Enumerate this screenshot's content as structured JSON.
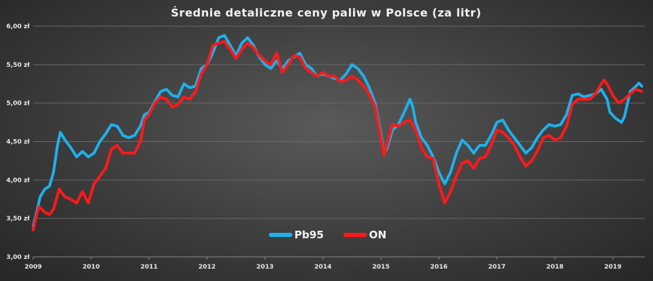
{
  "chart_data": {
    "type": "line",
    "title": "Średnie detaliczne ceny paliw w Polsce (za litr)",
    "ylim": [
      3.0,
      6.0
    ],
    "xlim": [
      2009.0,
      2019.55
    ],
    "y_ticks": [
      3.0,
      3.5,
      4.0,
      4.5,
      5.0,
      5.5,
      6.0
    ],
    "y_tick_labels": [
      "3,00 zł",
      "3,50 zł",
      "4,00 zł",
      "4,50 zł",
      "5,00 zł",
      "5,50 zł",
      "6,00 zł"
    ],
    "x_ticks": [
      2009,
      2010,
      2011,
      2012,
      2013,
      2014,
      2015,
      2016,
      2017,
      2018,
      2019
    ],
    "x_tick_labels": [
      "2009",
      "2010",
      "2011",
      "2012",
      "2013",
      "2014",
      "2015",
      "2016",
      "2017",
      "2018",
      "2019"
    ],
    "grid": true,
    "legend": "bottom-center",
    "colors": {
      "Pb95": "#1fb0ec",
      "ON": "#ff1a1a"
    },
    "series": [
      {
        "name": "Pb95",
        "points": [
          [
            2009.0,
            3.4
          ],
          [
            2009.05,
            3.55
          ],
          [
            2009.12,
            3.78
          ],
          [
            2009.2,
            3.88
          ],
          [
            2009.28,
            3.92
          ],
          [
            2009.35,
            4.1
          ],
          [
            2009.42,
            4.45
          ],
          [
            2009.47,
            4.62
          ],
          [
            2009.55,
            4.52
          ],
          [
            2009.65,
            4.42
          ],
          [
            2009.75,
            4.3
          ],
          [
            2009.85,
            4.37
          ],
          [
            2009.95,
            4.3
          ],
          [
            2010.05,
            4.35
          ],
          [
            2010.15,
            4.5
          ],
          [
            2010.25,
            4.6
          ],
          [
            2010.35,
            4.72
          ],
          [
            2010.45,
            4.7
          ],
          [
            2010.55,
            4.58
          ],
          [
            2010.65,
            4.55
          ],
          [
            2010.75,
            4.58
          ],
          [
            2010.85,
            4.7
          ],
          [
            2010.92,
            4.85
          ],
          [
            2011.0,
            4.88
          ],
          [
            2011.1,
            5.02
          ],
          [
            2011.2,
            5.15
          ],
          [
            2011.3,
            5.18
          ],
          [
            2011.4,
            5.1
          ],
          [
            2011.5,
            5.08
          ],
          [
            2011.6,
            5.25
          ],
          [
            2011.7,
            5.2
          ],
          [
            2011.8,
            5.22
          ],
          [
            2011.9,
            5.45
          ],
          [
            2012.0,
            5.5
          ],
          [
            2012.1,
            5.65
          ],
          [
            2012.2,
            5.85
          ],
          [
            2012.3,
            5.88
          ],
          [
            2012.4,
            5.75
          ],
          [
            2012.5,
            5.62
          ],
          [
            2012.6,
            5.78
          ],
          [
            2012.7,
            5.85
          ],
          [
            2012.8,
            5.75
          ],
          [
            2012.9,
            5.6
          ],
          [
            2013.0,
            5.5
          ],
          [
            2013.1,
            5.45
          ],
          [
            2013.2,
            5.55
          ],
          [
            2013.3,
            5.45
          ],
          [
            2013.4,
            5.55
          ],
          [
            2013.5,
            5.6
          ],
          [
            2013.6,
            5.65
          ],
          [
            2013.7,
            5.5
          ],
          [
            2013.8,
            5.45
          ],
          [
            2013.9,
            5.35
          ],
          [
            2014.0,
            5.38
          ],
          [
            2014.1,
            5.35
          ],
          [
            2014.2,
            5.32
          ],
          [
            2014.3,
            5.3
          ],
          [
            2014.4,
            5.38
          ],
          [
            2014.5,
            5.5
          ],
          [
            2014.6,
            5.45
          ],
          [
            2014.7,
            5.35
          ],
          [
            2014.8,
            5.2
          ],
          [
            2014.9,
            5.0
          ],
          [
            2015.0,
            4.6
          ],
          [
            2015.05,
            4.35
          ],
          [
            2015.1,
            4.4
          ],
          [
            2015.2,
            4.65
          ],
          [
            2015.3,
            4.72
          ],
          [
            2015.4,
            4.88
          ],
          [
            2015.5,
            5.05
          ],
          [
            2015.55,
            4.95
          ],
          [
            2015.6,
            4.75
          ],
          [
            2015.7,
            4.55
          ],
          [
            2015.8,
            4.45
          ],
          [
            2015.9,
            4.3
          ],
          [
            2016.0,
            4.1
          ],
          [
            2016.1,
            3.95
          ],
          [
            2016.2,
            4.1
          ],
          [
            2016.3,
            4.35
          ],
          [
            2016.4,
            4.52
          ],
          [
            2016.5,
            4.45
          ],
          [
            2016.6,
            4.35
          ],
          [
            2016.7,
            4.45
          ],
          [
            2016.8,
            4.45
          ],
          [
            2016.9,
            4.58
          ],
          [
            2017.0,
            4.75
          ],
          [
            2017.1,
            4.78
          ],
          [
            2017.2,
            4.65
          ],
          [
            2017.3,
            4.55
          ],
          [
            2017.4,
            4.45
          ],
          [
            2017.5,
            4.35
          ],
          [
            2017.6,
            4.42
          ],
          [
            2017.7,
            4.55
          ],
          [
            2017.8,
            4.65
          ],
          [
            2017.9,
            4.72
          ],
          [
            2018.0,
            4.7
          ],
          [
            2018.1,
            4.72
          ],
          [
            2018.2,
            4.85
          ],
          [
            2018.3,
            5.1
          ],
          [
            2018.4,
            5.12
          ],
          [
            2018.5,
            5.08
          ],
          [
            2018.6,
            5.1
          ],
          [
            2018.7,
            5.12
          ],
          [
            2018.8,
            5.18
          ],
          [
            2018.9,
            5.05
          ],
          [
            2018.95,
            4.88
          ],
          [
            2019.05,
            4.8
          ],
          [
            2019.15,
            4.75
          ],
          [
            2019.2,
            4.82
          ],
          [
            2019.3,
            5.15
          ],
          [
            2019.4,
            5.22
          ],
          [
            2019.45,
            5.26
          ],
          [
            2019.5,
            5.22
          ]
        ]
      },
      {
        "name": "ON",
        "points": [
          [
            2009.0,
            3.35
          ],
          [
            2009.05,
            3.52
          ],
          [
            2009.1,
            3.65
          ],
          [
            2009.2,
            3.58
          ],
          [
            2009.28,
            3.55
          ],
          [
            2009.35,
            3.62
          ],
          [
            2009.45,
            3.88
          ],
          [
            2009.55,
            3.78
          ],
          [
            2009.65,
            3.75
          ],
          [
            2009.75,
            3.7
          ],
          [
            2009.85,
            3.85
          ],
          [
            2009.95,
            3.7
          ],
          [
            2010.05,
            3.95
          ],
          [
            2010.15,
            4.05
          ],
          [
            2010.25,
            4.15
          ],
          [
            2010.35,
            4.4
          ],
          [
            2010.45,
            4.45
          ],
          [
            2010.55,
            4.35
          ],
          [
            2010.65,
            4.35
          ],
          [
            2010.75,
            4.35
          ],
          [
            2010.85,
            4.5
          ],
          [
            2010.92,
            4.78
          ],
          [
            2011.0,
            4.85
          ],
          [
            2011.1,
            5.0
          ],
          [
            2011.2,
            5.08
          ],
          [
            2011.3,
            5.05
          ],
          [
            2011.4,
            4.95
          ],
          [
            2011.5,
            4.98
          ],
          [
            2011.6,
            5.08
          ],
          [
            2011.7,
            5.05
          ],
          [
            2011.8,
            5.15
          ],
          [
            2011.9,
            5.38
          ],
          [
            2012.0,
            5.5
          ],
          [
            2012.1,
            5.75
          ],
          [
            2012.2,
            5.78
          ],
          [
            2012.3,
            5.8
          ],
          [
            2012.4,
            5.7
          ],
          [
            2012.5,
            5.58
          ],
          [
            2012.6,
            5.7
          ],
          [
            2012.7,
            5.78
          ],
          [
            2012.8,
            5.72
          ],
          [
            2012.9,
            5.62
          ],
          [
            2013.0,
            5.55
          ],
          [
            2013.1,
            5.5
          ],
          [
            2013.2,
            5.65
          ],
          [
            2013.3,
            5.4
          ],
          [
            2013.4,
            5.5
          ],
          [
            2013.5,
            5.62
          ],
          [
            2013.6,
            5.6
          ],
          [
            2013.7,
            5.45
          ],
          [
            2013.8,
            5.4
          ],
          [
            2013.9,
            5.35
          ],
          [
            2014.0,
            5.4
          ],
          [
            2014.1,
            5.35
          ],
          [
            2014.2,
            5.35
          ],
          [
            2014.3,
            5.28
          ],
          [
            2014.4,
            5.3
          ],
          [
            2014.5,
            5.35
          ],
          [
            2014.6,
            5.3
          ],
          [
            2014.7,
            5.22
          ],
          [
            2014.8,
            5.12
          ],
          [
            2014.9,
            4.95
          ],
          [
            2015.0,
            4.55
          ],
          [
            2015.05,
            4.32
          ],
          [
            2015.1,
            4.45
          ],
          [
            2015.2,
            4.72
          ],
          [
            2015.3,
            4.7
          ],
          [
            2015.4,
            4.75
          ],
          [
            2015.5,
            4.78
          ],
          [
            2015.6,
            4.65
          ],
          [
            2015.7,
            4.42
          ],
          [
            2015.8,
            4.3
          ],
          [
            2015.9,
            4.28
          ],
          [
            2016.0,
            3.95
          ],
          [
            2016.1,
            3.7
          ],
          [
            2016.2,
            3.85
          ],
          [
            2016.3,
            4.05
          ],
          [
            2016.4,
            4.22
          ],
          [
            2016.5,
            4.25
          ],
          [
            2016.6,
            4.15
          ],
          [
            2016.7,
            4.28
          ],
          [
            2016.8,
            4.3
          ],
          [
            2016.9,
            4.45
          ],
          [
            2017.0,
            4.65
          ],
          [
            2017.1,
            4.62
          ],
          [
            2017.2,
            4.55
          ],
          [
            2017.3,
            4.45
          ],
          [
            2017.4,
            4.3
          ],
          [
            2017.5,
            4.18
          ],
          [
            2017.6,
            4.25
          ],
          [
            2017.7,
            4.38
          ],
          [
            2017.8,
            4.55
          ],
          [
            2017.9,
            4.58
          ],
          [
            2018.0,
            4.52
          ],
          [
            2018.1,
            4.55
          ],
          [
            2018.2,
            4.7
          ],
          [
            2018.3,
            4.98
          ],
          [
            2018.4,
            5.05
          ],
          [
            2018.5,
            5.05
          ],
          [
            2018.6,
            5.05
          ],
          [
            2018.7,
            5.12
          ],
          [
            2018.8,
            5.25
          ],
          [
            2018.85,
            5.3
          ],
          [
            2018.9,
            5.25
          ],
          [
            2019.0,
            5.1
          ],
          [
            2019.1,
            5.0
          ],
          [
            2019.2,
            5.05
          ],
          [
            2019.3,
            5.12
          ],
          [
            2019.4,
            5.18
          ],
          [
            2019.5,
            5.15
          ]
        ]
      }
    ]
  }
}
